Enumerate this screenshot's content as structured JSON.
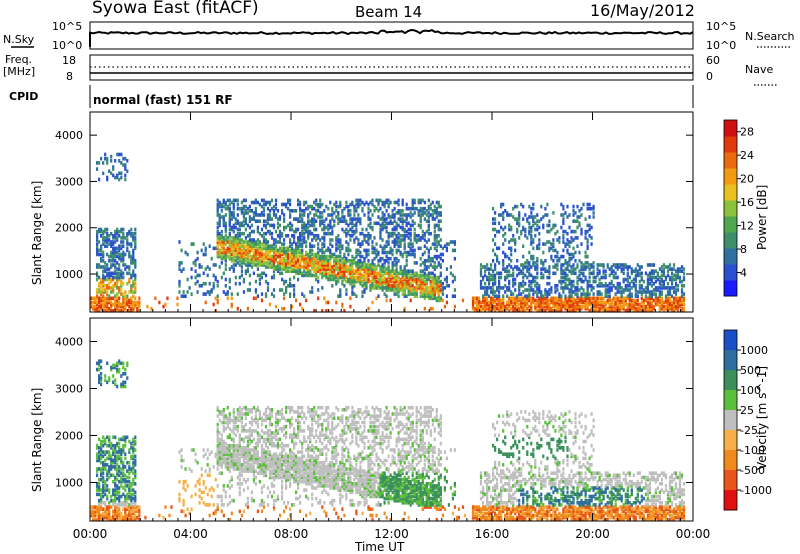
{
  "header": {
    "station": "Syowa East (fitACF)",
    "beam": "Beam 14",
    "date": "16/May/2012"
  },
  "top_panel": {
    "nsky_label": "N.Sky",
    "nsky_top": "10^5",
    "nsky_bot": "10^0",
    "nsearch_label": "N.Search",
    "nsearch_top": "10^5",
    "nsearch_bot": "10^0",
    "freq_label": "Freq.",
    "freq_unit": "[MHz]",
    "freq_top": "18",
    "freq_bot": "8",
    "nave_label": "Nave",
    "nave_top": "60",
    "nave_bot": "0",
    "cpid_label": "CPID",
    "cpid_value": "normal (fast) 151 RF"
  },
  "chart_data": [
    {
      "type": "heatmap",
      "title": "",
      "xlabel": "Time UT",
      "ylabel": "Slant Range [km]",
      "x_ticks": [
        "00:00",
        "04:00",
        "08:00",
        "12:00",
        "16:00",
        "20:00",
        "00:00"
      ],
      "x_range_hours": [
        0,
        24
      ],
      "y_ticks": [
        1000,
        2000,
        3000,
        4000
      ],
      "y_range_km": [
        180,
        4500
      ],
      "colorbar": {
        "label": "Power [dB]",
        "ticks": [
          4,
          8,
          12,
          16,
          20,
          24,
          28
        ],
        "range": [
          0,
          30
        ],
        "colors": [
          "#1a1aff",
          "#2a4fd0",
          "#3070a0",
          "#3d8f6a",
          "#4fa84f",
          "#8cc23a",
          "#e8c020",
          "#f29a12",
          "#ea6a0e",
          "#e03a0a",
          "#d01010"
        ]
      },
      "features": [
        {
          "desc": "near-range band",
          "start_h": 0,
          "end_h": 24,
          "range_km": [
            250,
            500
          ]
        },
        {
          "desc": "descending echo band",
          "start_h": 5,
          "end_h": 14,
          "range_km_start": 1600,
          "range_km_end": 650
        }
      ]
    },
    {
      "type": "heatmap",
      "title": "",
      "xlabel": "Time UT",
      "ylabel": "Slant Range [km]",
      "x_ticks": [
        "00:00",
        "04:00",
        "08:00",
        "12:00",
        "16:00",
        "20:00",
        "00:00"
      ],
      "x_range_hours": [
        0,
        24
      ],
      "y_ticks": [
        1000,
        2000,
        3000,
        4000
      ],
      "y_range_km": [
        180,
        4500
      ],
      "colorbar": {
        "label": "Velocity [m s^-1]",
        "ticks": [
          1000,
          500,
          100,
          25,
          -25,
          -100,
          -500,
          -1000
        ],
        "colors": [
          "#1a4fc8",
          "#2f6da0",
          "#3b8f5a",
          "#5cbf3c",
          "#bfbfbf",
          "#f6b04a",
          "#f08a1c",
          "#e8541a",
          "#e01010"
        ]
      }
    }
  ]
}
